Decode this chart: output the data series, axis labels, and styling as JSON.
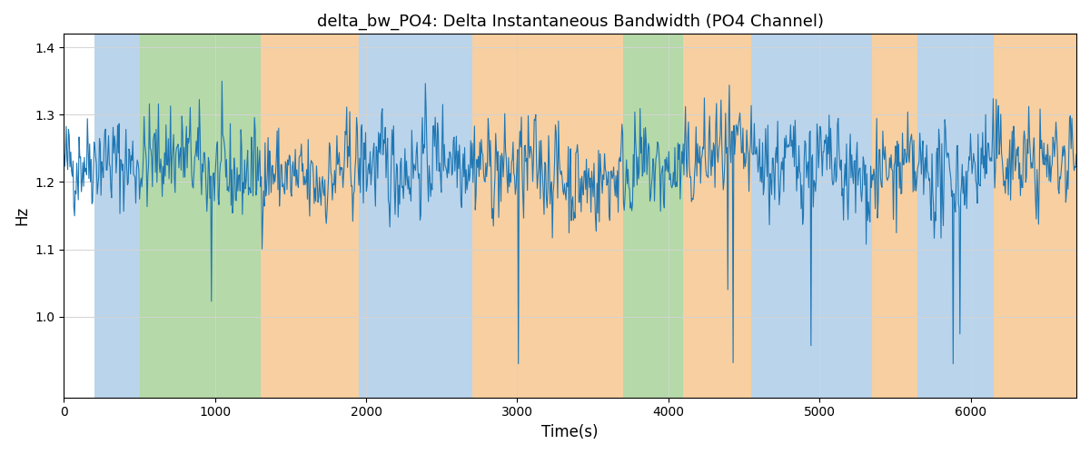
{
  "title": "delta_bw_PO4: Delta Instantaneous Bandwidth (PO4 Channel)",
  "xlabel": "Time(s)",
  "ylabel": "Hz",
  "xlim": [
    0,
    6700
  ],
  "ylim": [
    0.88,
    1.42
  ],
  "bg_bands": [
    {
      "xmin": 200,
      "xmax": 500,
      "color": "#bad4eb"
    },
    {
      "xmin": 500,
      "xmax": 1300,
      "color": "#b5d9a8"
    },
    {
      "xmin": 1300,
      "xmax": 1950,
      "color": "#f7cfa0"
    },
    {
      "xmin": 1950,
      "xmax": 2550,
      "color": "#bad4eb"
    },
    {
      "xmin": 2550,
      "xmax": 2700,
      "color": "#bad4eb"
    },
    {
      "xmin": 2700,
      "xmax": 3700,
      "color": "#f7cfa0"
    },
    {
      "xmin": 3700,
      "xmax": 4100,
      "color": "#b5d9a8"
    },
    {
      "xmin": 4100,
      "xmax": 4550,
      "color": "#f7cfa0"
    },
    {
      "xmin": 4550,
      "xmax": 5350,
      "color": "#bad4eb"
    },
    {
      "xmin": 5350,
      "xmax": 5650,
      "color": "#f7cfa0"
    },
    {
      "xmin": 5650,
      "xmax": 6150,
      "color": "#bad4eb"
    },
    {
      "xmin": 6150,
      "xmax": 6700,
      "color": "#f7cfa0"
    }
  ],
  "line_color": "#1f77b4",
  "line_width": 0.8,
  "seed": 42,
  "n_points": 1340,
  "base_mean": 1.22,
  "base_std": 0.05,
  "yticks": [
    1.0,
    1.1,
    1.2,
    1.3,
    1.4
  ],
  "xticks": [
    0,
    1000,
    2000,
    3000,
    4000,
    5000,
    6000
  ]
}
